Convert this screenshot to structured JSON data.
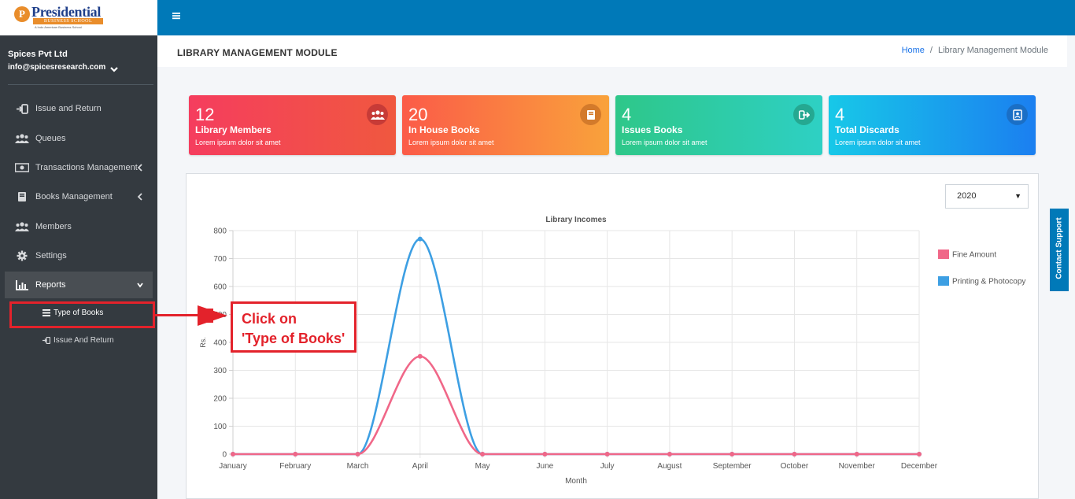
{
  "brand": {
    "mark": "P",
    "name": "Presidential",
    "sub": "BUSINESS SCHOOL",
    "tag": "A Indo American Business School"
  },
  "user": {
    "company": "Spices Pvt Ltd",
    "email": "info@spicesresearch.com"
  },
  "nav": {
    "issue_return": "Issue and Return",
    "queues": "Queues",
    "transactions": "Transactions Management",
    "books": "Books Management",
    "members": "Members",
    "settings": "Settings",
    "reports": "Reports",
    "sub_type_of_books": "Type of Books",
    "sub_issue_and_return": "Issue And Return"
  },
  "header": {
    "title": "LIBRARY MANAGEMENT MODULE",
    "breadcrumb_home": "Home",
    "breadcrumb_sep": "/",
    "breadcrumb_current": "Library Management Module"
  },
  "cards": [
    {
      "number": "12",
      "label": "Library Members",
      "sub": "Lorem ipsum dolor sit amet",
      "icon": "users-icon"
    },
    {
      "number": "20",
      "label": "In House Books",
      "sub": "Lorem ipsum dolor sit amet",
      "icon": "book-icon"
    },
    {
      "number": "4",
      "label": "Issues Books",
      "sub": "Lorem ipsum dolor sit amet",
      "icon": "sign-out-icon"
    },
    {
      "number": "4",
      "label": "Total Discards",
      "sub": "Lorem ipsum dolor sit amet",
      "icon": "address-book-icon"
    }
  ],
  "year_select": {
    "value": "2020"
  },
  "contact_support": "Contact Support",
  "callout": {
    "line1": "Click on",
    "line2": "'Type of Books'"
  },
  "colors": {
    "fine": "#f06788",
    "printing": "#3d9fe3",
    "topbar": "#0079b8",
    "sidebar": "#343a40",
    "callout": "#e3222b"
  },
  "chart_data": {
    "type": "line",
    "title": "Library Incomes",
    "xlabel": "Month",
    "ylabel": "Rs.",
    "ylim": [
      0,
      800
    ],
    "yticks": [
      0,
      100,
      200,
      300,
      400,
      500,
      600,
      700,
      800
    ],
    "categories": [
      "January",
      "February",
      "March",
      "April",
      "May",
      "June",
      "July",
      "August",
      "September",
      "October",
      "November",
      "December"
    ],
    "series": [
      {
        "name": "Fine Amount",
        "color": "#f06788",
        "values": [
          0,
          0,
          0,
          350,
          0,
          0,
          0,
          0,
          0,
          0,
          0,
          0
        ]
      },
      {
        "name": "Printing & Photocopy",
        "color": "#3d9fe3",
        "values": [
          0,
          0,
          0,
          770,
          0,
          0,
          0,
          0,
          0,
          0,
          0,
          0
        ]
      }
    ],
    "grid": true,
    "legend": "right"
  }
}
